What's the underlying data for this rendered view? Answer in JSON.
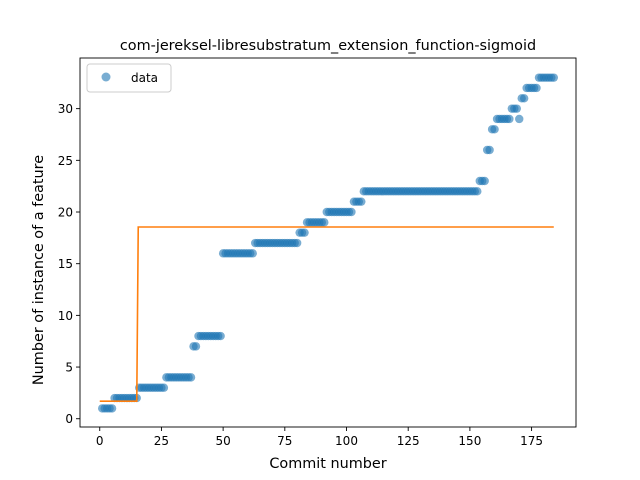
{
  "chart_data": {
    "type": "scatter",
    "title": "com-jereksel-libresubstratum_extension_function-sigmoid",
    "xlabel": "Commit number",
    "ylabel": "Number of instance of a feature",
    "xlim": [
      -8,
      193
    ],
    "ylim": [
      -0.8,
      34.9
    ],
    "xticks": [
      0,
      25,
      50,
      75,
      100,
      125,
      150,
      175
    ],
    "yticks": [
      0,
      5,
      10,
      15,
      20,
      25,
      30
    ],
    "legend": {
      "position": "top-left",
      "entries": [
        "data"
      ]
    },
    "grid": false,
    "colors": {
      "data": "#1f77b4",
      "fit": "#ff7f0e"
    },
    "series": [
      {
        "name": "data",
        "kind": "scatter",
        "points": [
          [
            1,
            1
          ],
          [
            2,
            1
          ],
          [
            3,
            1
          ],
          [
            4,
            1
          ],
          [
            5,
            1
          ],
          [
            6,
            2
          ],
          [
            7,
            2
          ],
          [
            8,
            2
          ],
          [
            9,
            2
          ],
          [
            10,
            2
          ],
          [
            11,
            2
          ],
          [
            12,
            2
          ],
          [
            13,
            2
          ],
          [
            14,
            2
          ],
          [
            15,
            2
          ],
          [
            16,
            3
          ],
          [
            17,
            3
          ],
          [
            18,
            3
          ],
          [
            19,
            3
          ],
          [
            20,
            3
          ],
          [
            21,
            3
          ],
          [
            22,
            3
          ],
          [
            23,
            3
          ],
          [
            24,
            3
          ],
          [
            25,
            3
          ],
          [
            26,
            3
          ],
          [
            27,
            4
          ],
          [
            28,
            4
          ],
          [
            29,
            4
          ],
          [
            30,
            4
          ],
          [
            31,
            4
          ],
          [
            32,
            4
          ],
          [
            33,
            4
          ],
          [
            34,
            4
          ],
          [
            35,
            4
          ],
          [
            36,
            4
          ],
          [
            37,
            4
          ],
          [
            38,
            7
          ],
          [
            39,
            7
          ],
          [
            40,
            8
          ],
          [
            41,
            8
          ],
          [
            42,
            8
          ],
          [
            43,
            8
          ],
          [
            44,
            8
          ],
          [
            45,
            8
          ],
          [
            46,
            8
          ],
          [
            47,
            8
          ],
          [
            48,
            8
          ],
          [
            49,
            8
          ],
          [
            50,
            16
          ],
          [
            51,
            16
          ],
          [
            52,
            16
          ],
          [
            53,
            16
          ],
          [
            54,
            16
          ],
          [
            55,
            16
          ],
          [
            56,
            16
          ],
          [
            57,
            16
          ],
          [
            58,
            16
          ],
          [
            59,
            16
          ],
          [
            60,
            16
          ],
          [
            61,
            16
          ],
          [
            62,
            16
          ],
          [
            63,
            17
          ],
          [
            64,
            17
          ],
          [
            65,
            17
          ],
          [
            66,
            17
          ],
          [
            67,
            17
          ],
          [
            68,
            17
          ],
          [
            69,
            17
          ],
          [
            70,
            17
          ],
          [
            71,
            17
          ],
          [
            72,
            17
          ],
          [
            73,
            17
          ],
          [
            74,
            17
          ],
          [
            75,
            17
          ],
          [
            76,
            17
          ],
          [
            77,
            17
          ],
          [
            78,
            17
          ],
          [
            79,
            17
          ],
          [
            80,
            17
          ],
          [
            81,
            18
          ],
          [
            82,
            18
          ],
          [
            83,
            18
          ],
          [
            84,
            19
          ],
          [
            85,
            19
          ],
          [
            86,
            19
          ],
          [
            87,
            19
          ],
          [
            88,
            19
          ],
          [
            89,
            19
          ],
          [
            90,
            19
          ],
          [
            91,
            19
          ],
          [
            92,
            20
          ],
          [
            93,
            20
          ],
          [
            94,
            20
          ],
          [
            95,
            20
          ],
          [
            96,
            20
          ],
          [
            97,
            20
          ],
          [
            98,
            20
          ],
          [
            99,
            20
          ],
          [
            100,
            20
          ],
          [
            101,
            20
          ],
          [
            102,
            20
          ],
          [
            103,
            21
          ],
          [
            104,
            21
          ],
          [
            105,
            21
          ],
          [
            106,
            21
          ],
          [
            107,
            22
          ],
          [
            108,
            22
          ],
          [
            109,
            22
          ],
          [
            110,
            22
          ],
          [
            111,
            22
          ],
          [
            112,
            22
          ],
          [
            113,
            22
          ],
          [
            114,
            22
          ],
          [
            115,
            22
          ],
          [
            116,
            22
          ],
          [
            117,
            22
          ],
          [
            118,
            22
          ],
          [
            119,
            22
          ],
          [
            120,
            22
          ],
          [
            121,
            22
          ],
          [
            122,
            22
          ],
          [
            123,
            22
          ],
          [
            124,
            22
          ],
          [
            125,
            22
          ],
          [
            126,
            22
          ],
          [
            127,
            22
          ],
          [
            128,
            22
          ],
          [
            129,
            22
          ],
          [
            130,
            22
          ],
          [
            131,
            22
          ],
          [
            132,
            22
          ],
          [
            133,
            22
          ],
          [
            134,
            22
          ],
          [
            135,
            22
          ],
          [
            136,
            22
          ],
          [
            137,
            22
          ],
          [
            138,
            22
          ],
          [
            139,
            22
          ],
          [
            140,
            22
          ],
          [
            141,
            22
          ],
          [
            142,
            22
          ],
          [
            143,
            22
          ],
          [
            144,
            22
          ],
          [
            145,
            22
          ],
          [
            146,
            22
          ],
          [
            147,
            22
          ],
          [
            148,
            22
          ],
          [
            149,
            22
          ],
          [
            150,
            22
          ],
          [
            151,
            22
          ],
          [
            152,
            22
          ],
          [
            153,
            22
          ],
          [
            154,
            23
          ],
          [
            155,
            23
          ],
          [
            156,
            23
          ],
          [
            157,
            26
          ],
          [
            158,
            26
          ],
          [
            159,
            28
          ],
          [
            160,
            28
          ],
          [
            161,
            29
          ],
          [
            162,
            29
          ],
          [
            163,
            29
          ],
          [
            164,
            29
          ],
          [
            165,
            29
          ],
          [
            166,
            29
          ],
          [
            167,
            30
          ],
          [
            168,
            30
          ],
          [
            169,
            30
          ],
          [
            170,
            29
          ],
          [
            171,
            31
          ],
          [
            172,
            31
          ],
          [
            173,
            32
          ],
          [
            174,
            32
          ],
          [
            175,
            32
          ],
          [
            176,
            32
          ],
          [
            177,
            32
          ],
          [
            178,
            33
          ],
          [
            179,
            33
          ],
          [
            180,
            33
          ],
          [
            181,
            33
          ],
          [
            182,
            33
          ],
          [
            183,
            33
          ],
          [
            184,
            33
          ]
        ]
      },
      {
        "name": "",
        "kind": "line",
        "points": [
          [
            0,
            1.7
          ],
          [
            15.0,
            1.7
          ],
          [
            15.6,
            18.55
          ],
          [
            184,
            18.55
          ]
        ]
      }
    ]
  }
}
